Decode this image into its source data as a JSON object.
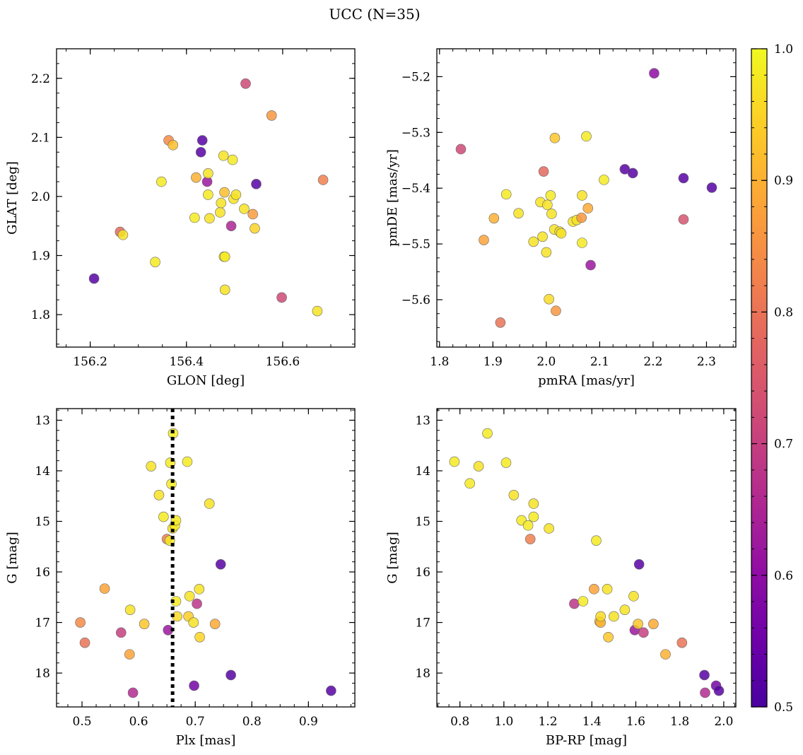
{
  "figure": {
    "title": "UCC (N=35)"
  },
  "colorbar": {
    "min": 0.5,
    "max": 1.0,
    "ticks": [
      0.5,
      0.6,
      0.7,
      0.8,
      0.9,
      1.0
    ],
    "tick_labels": [
      "0.5",
      "0.6",
      "0.7",
      "0.8",
      "0.9",
      "1.0"
    ],
    "colormap": "plasma"
  },
  "chart_data": [
    {
      "id": "glon_glat",
      "type": "scatter",
      "xlabel": "GLON [deg]",
      "ylabel": "GLAT [deg]",
      "xlim": [
        156.13,
        156.75
      ],
      "ylim": [
        1.745,
        2.25
      ],
      "y_inverted": false,
      "xticks": [
        156.2,
        156.4,
        156.6
      ],
      "xtick_labels": [
        "156.2",
        "156.4",
        "156.6"
      ],
      "yticks": [
        1.8,
        1.9,
        2.0,
        2.1,
        2.2
      ],
      "ytick_labels": [
        "1.8",
        "1.9",
        "2.0",
        "2.1",
        "2.2"
      ],
      "x_minor_step": 0.05,
      "y_minor_step": 0.025,
      "points": [
        {
          "x": 156.208,
          "y": 1.861,
          "c": 0.52
        },
        {
          "x": 156.262,
          "y": 1.94,
          "c": 0.78
        },
        {
          "x": 156.268,
          "y": 1.935,
          "c": 0.97
        },
        {
          "x": 156.335,
          "y": 1.889,
          "c": 0.98
        },
        {
          "x": 156.348,
          "y": 2.025,
          "c": 0.98
        },
        {
          "x": 156.363,
          "y": 2.095,
          "c": 0.84
        },
        {
          "x": 156.372,
          "y": 2.087,
          "c": 0.92
        },
        {
          "x": 156.417,
          "y": 1.964,
          "c": 0.98
        },
        {
          "x": 156.42,
          "y": 2.032,
          "c": 0.9
        },
        {
          "x": 156.43,
          "y": 2.075,
          "c": 0.52
        },
        {
          "x": 156.433,
          "y": 2.095,
          "c": 0.52
        },
        {
          "x": 156.443,
          "y": 2.025,
          "c": 0.62
        },
        {
          "x": 156.445,
          "y": 2.039,
          "c": 0.97
        },
        {
          "x": 156.445,
          "y": 2.003,
          "c": 0.98
        },
        {
          "x": 156.448,
          "y": 1.963,
          "c": 0.97
        },
        {
          "x": 156.47,
          "y": 1.973,
          "c": 0.97
        },
        {
          "x": 156.472,
          "y": 1.989,
          "c": 0.97
        },
        {
          "x": 156.477,
          "y": 2.069,
          "c": 0.97
        },
        {
          "x": 156.479,
          "y": 2.007,
          "c": 0.92
        },
        {
          "x": 156.478,
          "y": 1.898,
          "c": 0.97
        },
        {
          "x": 156.48,
          "y": 1.898,
          "c": 0.98
        },
        {
          "x": 156.48,
          "y": 1.842,
          "c": 0.97
        },
        {
          "x": 156.493,
          "y": 1.95,
          "c": 0.65
        },
        {
          "x": 156.496,
          "y": 2.062,
          "c": 0.98
        },
        {
          "x": 156.498,
          "y": 1.996,
          "c": 0.97
        },
        {
          "x": 156.503,
          "y": 2.003,
          "c": 0.97
        },
        {
          "x": 156.52,
          "y": 1.979,
          "c": 0.97
        },
        {
          "x": 156.523,
          "y": 2.191,
          "c": 0.72
        },
        {
          "x": 156.538,
          "y": 1.97,
          "c": 0.87
        },
        {
          "x": 156.542,
          "y": 1.946,
          "c": 0.95
        },
        {
          "x": 156.545,
          "y": 2.021,
          "c": 0.52
        },
        {
          "x": 156.577,
          "y": 2.137,
          "c": 0.86
        },
        {
          "x": 156.598,
          "y": 1.829,
          "c": 0.72
        },
        {
          "x": 156.672,
          "y": 1.806,
          "c": 0.97
        },
        {
          "x": 156.684,
          "y": 2.028,
          "c": 0.82
        }
      ]
    },
    {
      "id": "pmra_pmde",
      "type": "scatter",
      "xlabel": "pmRA [mas/yr]",
      "ylabel": "pmDE [mas/yr]",
      "xlim": [
        1.795,
        2.355
      ],
      "ylim": [
        -5.685,
        -5.15
      ],
      "y_inverted": false,
      "xticks": [
        1.8,
        1.9,
        2.0,
        2.1,
        2.2,
        2.3
      ],
      "xtick_labels": [
        "1.8",
        "1.9",
        "2.0",
        "2.1",
        "2.2",
        "2.3"
      ],
      "yticks": [
        -5.6,
        -5.5,
        -5.4,
        -5.3,
        -5.2
      ],
      "ytick_labels": [
        "−5.6",
        "−5.5",
        "−5.4",
        "−5.3",
        "−5.2"
      ],
      "x_minor_step": 0.025,
      "y_minor_step": 0.025,
      "points": [
        {
          "x": 1.84,
          "y": -5.33,
          "c": 0.72
        },
        {
          "x": 1.883,
          "y": -5.493,
          "c": 0.88
        },
        {
          "x": 1.902,
          "y": -5.454,
          "c": 0.9
        },
        {
          "x": 1.914,
          "y": -5.641,
          "c": 0.8
        },
        {
          "x": 1.925,
          "y": -5.411,
          "c": 0.98
        },
        {
          "x": 1.948,
          "y": -5.445,
          "c": 0.97
        },
        {
          "x": 1.976,
          "y": -5.496,
          "c": 0.97
        },
        {
          "x": 1.989,
          "y": -5.425,
          "c": 0.97
        },
        {
          "x": 1.993,
          "y": -5.487,
          "c": 0.97
        },
        {
          "x": 1.995,
          "y": -5.37,
          "c": 0.78
        },
        {
          "x": 2.0,
          "y": -5.515,
          "c": 0.97
        },
        {
          "x": 2.002,
          "y": -5.43,
          "c": 0.97
        },
        {
          "x": 2.005,
          "y": -5.599,
          "c": 0.96
        },
        {
          "x": 2.008,
          "y": -5.413,
          "c": 0.98
        },
        {
          "x": 2.01,
          "y": -5.446,
          "c": 0.97
        },
        {
          "x": 2.015,
          "y": -5.474,
          "c": 0.97
        },
        {
          "x": 2.016,
          "y": -5.31,
          "c": 0.93
        },
        {
          "x": 2.018,
          "y": -5.62,
          "c": 0.86
        },
        {
          "x": 2.025,
          "y": -5.478,
          "c": 0.97
        },
        {
          "x": 2.028,
          "y": -5.481,
          "c": 0.97
        },
        {
          "x": 2.05,
          "y": -5.46,
          "c": 0.97
        },
        {
          "x": 2.057,
          "y": -5.457,
          "c": 0.97
        },
        {
          "x": 2.066,
          "y": -5.453,
          "c": 0.86
        },
        {
          "x": 2.067,
          "y": -5.413,
          "c": 0.97
        },
        {
          "x": 2.067,
          "y": -5.498,
          "c": 0.98
        },
        {
          "x": 2.075,
          "y": -5.307,
          "c": 0.98
        },
        {
          "x": 2.078,
          "y": -5.436,
          "c": 0.89
        },
        {
          "x": 2.083,
          "y": -5.538,
          "c": 0.62
        },
        {
          "x": 2.108,
          "y": -5.385,
          "c": 0.98
        },
        {
          "x": 2.147,
          "y": -5.366,
          "c": 0.52
        },
        {
          "x": 2.162,
          "y": -5.373,
          "c": 0.52
        },
        {
          "x": 2.202,
          "y": -5.194,
          "c": 0.6
        },
        {
          "x": 2.257,
          "y": -5.382,
          "c": 0.52
        },
        {
          "x": 2.257,
          "y": -5.456,
          "c": 0.74
        },
        {
          "x": 2.31,
          "y": -5.399,
          "c": 0.52
        }
      ]
    },
    {
      "id": "plx_g",
      "type": "scatter",
      "xlabel": "Plx [mas]",
      "ylabel": "G [mag]",
      "xlim": [
        0.455,
        0.982
      ],
      "ylim": [
        12.77,
        18.67
      ],
      "y_inverted": true,
      "xticks": [
        0.5,
        0.6,
        0.7,
        0.8,
        0.9
      ],
      "xtick_labels": [
        "0.5",
        "0.6",
        "0.7",
        "0.8",
        "0.9"
      ],
      "yticks": [
        13,
        14,
        15,
        16,
        17,
        18
      ],
      "ytick_labels": [
        "13",
        "14",
        "15",
        "16",
        "17",
        "18"
      ],
      "x_minor_step": 0.025,
      "y_minor_step": 0.2,
      "vline": 0.66,
      "points": [
        {
          "x": 0.497,
          "y": 17.0,
          "c": 0.84
        },
        {
          "x": 0.505,
          "y": 17.4,
          "c": 0.8
        },
        {
          "x": 0.54,
          "y": 16.33,
          "c": 0.88
        },
        {
          "x": 0.569,
          "y": 17.2,
          "c": 0.7
        },
        {
          "x": 0.584,
          "y": 17.63,
          "c": 0.88
        },
        {
          "x": 0.585,
          "y": 16.75,
          "c": 0.97
        },
        {
          "x": 0.59,
          "y": 18.39,
          "c": 0.66
        },
        {
          "x": 0.61,
          "y": 17.03,
          "c": 0.93
        },
        {
          "x": 0.622,
          "y": 13.91,
          "c": 0.97
        },
        {
          "x": 0.636,
          "y": 14.48,
          "c": 0.97
        },
        {
          "x": 0.644,
          "y": 14.91,
          "c": 0.98
        },
        {
          "x": 0.65,
          "y": 15.35,
          "c": 0.82
        },
        {
          "x": 0.652,
          "y": 17.15,
          "c": 0.62
        },
        {
          "x": 0.655,
          "y": 15.38,
          "c": 0.98
        },
        {
          "x": 0.656,
          "y": 13.84,
          "c": 0.98
        },
        {
          "x": 0.658,
          "y": 14.26,
          "c": 0.98
        },
        {
          "x": 0.66,
          "y": 15.14,
          "c": 0.97
        },
        {
          "x": 0.661,
          "y": 13.26,
          "c": 0.98
        },
        {
          "x": 0.664,
          "y": 15.08,
          "c": 0.98
        },
        {
          "x": 0.666,
          "y": 14.98,
          "c": 0.98
        },
        {
          "x": 0.666,
          "y": 16.58,
          "c": 0.98
        },
        {
          "x": 0.668,
          "y": 16.88,
          "c": 0.96
        },
        {
          "x": 0.686,
          "y": 13.82,
          "c": 0.98
        },
        {
          "x": 0.688,
          "y": 16.88,
          "c": 0.94
        },
        {
          "x": 0.69,
          "y": 16.48,
          "c": 0.97
        },
        {
          "x": 0.697,
          "y": 17.0,
          "c": 0.97
        },
        {
          "x": 0.698,
          "y": 18.25,
          "c": 0.56
        },
        {
          "x": 0.703,
          "y": 16.63,
          "c": 0.68
        },
        {
          "x": 0.707,
          "y": 16.34,
          "c": 0.97
        },
        {
          "x": 0.708,
          "y": 17.29,
          "c": 0.95
        },
        {
          "x": 0.725,
          "y": 14.65,
          "c": 0.97
        },
        {
          "x": 0.735,
          "y": 17.03,
          "c": 0.89
        },
        {
          "x": 0.745,
          "y": 15.85,
          "c": 0.52
        },
        {
          "x": 0.763,
          "y": 18.04,
          "c": 0.52
        },
        {
          "x": 0.94,
          "y": 18.35,
          "c": 0.52
        }
      ]
    },
    {
      "id": "bprp_g",
      "type": "scatter",
      "xlabel": "BP-RP [mag]",
      "ylabel": "G [mag]",
      "xlim": [
        0.695,
        2.055
      ],
      "ylim": [
        12.77,
        18.67
      ],
      "y_inverted": true,
      "xticks": [
        0.8,
        1.0,
        1.2,
        1.4,
        1.6,
        1.8,
        2.0
      ],
      "xtick_labels": [
        "0.8",
        "1.0",
        "1.2",
        "1.4",
        "1.6",
        "1.8",
        "2.0"
      ],
      "yticks": [
        13,
        14,
        15,
        16,
        17,
        18
      ],
      "ytick_labels": [
        "13",
        "14",
        "15",
        "16",
        "17",
        "18"
      ],
      "x_minor_step": 0.05,
      "y_minor_step": 0.2,
      "points": [
        {
          "x": 0.775,
          "y": 13.82,
          "c": 0.98
        },
        {
          "x": 0.845,
          "y": 14.25,
          "c": 0.98
        },
        {
          "x": 0.885,
          "y": 13.91,
          "c": 0.97
        },
        {
          "x": 0.925,
          "y": 13.26,
          "c": 0.98
        },
        {
          "x": 1.01,
          "y": 13.84,
          "c": 0.98
        },
        {
          "x": 1.045,
          "y": 14.48,
          "c": 0.97
        },
        {
          "x": 1.08,
          "y": 14.98,
          "c": 0.98
        },
        {
          "x": 1.11,
          "y": 15.08,
          "c": 0.98
        },
        {
          "x": 1.12,
          "y": 15.35,
          "c": 0.82
        },
        {
          "x": 1.135,
          "y": 14.65,
          "c": 0.97
        },
        {
          "x": 1.135,
          "y": 14.91,
          "c": 0.98
        },
        {
          "x": 1.205,
          "y": 15.14,
          "c": 0.97
        },
        {
          "x": 1.32,
          "y": 16.63,
          "c": 0.68
        },
        {
          "x": 1.36,
          "y": 16.58,
          "c": 0.98
        },
        {
          "x": 1.41,
          "y": 16.34,
          "c": 0.88
        },
        {
          "x": 1.42,
          "y": 15.38,
          "c": 0.98
        },
        {
          "x": 1.435,
          "y": 16.98,
          "c": 0.93
        },
        {
          "x": 1.44,
          "y": 17.0,
          "c": 0.9
        },
        {
          "x": 1.44,
          "y": 16.88,
          "c": 0.96
        },
        {
          "x": 1.47,
          "y": 16.34,
          "c": 0.97
        },
        {
          "x": 1.475,
          "y": 17.29,
          "c": 0.93
        },
        {
          "x": 1.5,
          "y": 16.88,
          "c": 0.97
        },
        {
          "x": 1.55,
          "y": 16.75,
          "c": 0.97
        },
        {
          "x": 1.59,
          "y": 16.48,
          "c": 0.97
        },
        {
          "x": 1.595,
          "y": 17.15,
          "c": 0.62
        },
        {
          "x": 1.61,
          "y": 17.03,
          "c": 0.93
        },
        {
          "x": 1.615,
          "y": 15.85,
          "c": 0.52
        },
        {
          "x": 1.635,
          "y": 17.2,
          "c": 0.7
        },
        {
          "x": 1.68,
          "y": 17.03,
          "c": 0.89
        },
        {
          "x": 1.735,
          "y": 17.63,
          "c": 0.9
        },
        {
          "x": 1.81,
          "y": 17.4,
          "c": 0.8
        },
        {
          "x": 1.912,
          "y": 18.04,
          "c": 0.52
        },
        {
          "x": 1.915,
          "y": 18.39,
          "c": 0.66
        },
        {
          "x": 1.965,
          "y": 18.25,
          "c": 0.56
        },
        {
          "x": 1.978,
          "y": 18.35,
          "c": 0.52
        }
      ]
    }
  ]
}
